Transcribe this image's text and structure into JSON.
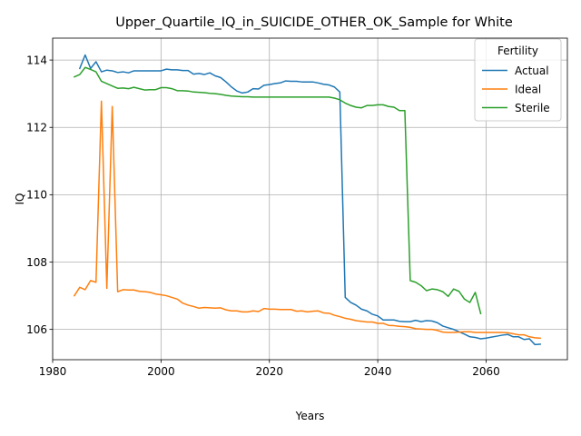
{
  "chart_data": {
    "type": "line",
    "title": "Upper_Quartile_IQ_in_SUICIDE_OTHER_OK_Sample for White",
    "xlabel": "Years",
    "ylabel": "IQ",
    "xlim": [
      1980,
      2075
    ],
    "ylim": [
      105.1,
      114.65
    ],
    "xticks": [
      1980,
      2000,
      2020,
      2040,
      2060
    ],
    "yticks": [
      106,
      108,
      110,
      112,
      114
    ],
    "grid": true,
    "legend": {
      "title": "Fertility",
      "placement": "top-right"
    },
    "series": [
      {
        "name": "Actual",
        "color": "#1f77b4",
        "points": [
          [
            1985,
            113.75
          ],
          [
            1986,
            114.15
          ],
          [
            1987,
            113.75
          ],
          [
            1988,
            113.95
          ],
          [
            1989,
            113.65
          ],
          [
            1990,
            113.7
          ],
          [
            1991,
            113.68
          ],
          [
            1992,
            113.63
          ],
          [
            1993,
            113.65
          ],
          [
            1994,
            113.62
          ],
          [
            1995,
            113.68
          ],
          [
            1996,
            113.68
          ],
          [
            1997,
            113.68
          ],
          [
            1998,
            113.68
          ],
          [
            1999,
            113.68
          ],
          [
            2000,
            113.68
          ],
          [
            2001,
            113.73
          ],
          [
            2002,
            113.71
          ],
          [
            2003,
            113.71
          ],
          [
            2004,
            113.69
          ],
          [
            2005,
            113.69
          ],
          [
            2006,
            113.58
          ],
          [
            2007,
            113.6
          ],
          [
            2008,
            113.57
          ],
          [
            2009,
            113.62
          ],
          [
            2010,
            113.53
          ],
          [
            2011,
            113.48
          ],
          [
            2012,
            113.35
          ],
          [
            2013,
            113.2
          ],
          [
            2014,
            113.08
          ],
          [
            2015,
            113.02
          ],
          [
            2016,
            113.05
          ],
          [
            2017,
            113.15
          ],
          [
            2018,
            113.14
          ],
          [
            2019,
            113.25
          ],
          [
            2020,
            113.27
          ],
          [
            2021,
            113.3
          ],
          [
            2022,
            113.32
          ],
          [
            2023,
            113.38
          ],
          [
            2024,
            113.37
          ],
          [
            2025,
            113.37
          ],
          [
            2026,
            113.35
          ],
          [
            2027,
            113.35
          ],
          [
            2028,
            113.35
          ],
          [
            2029,
            113.32
          ],
          [
            2030,
            113.28
          ],
          [
            2031,
            113.26
          ],
          [
            2032,
            113.2
          ],
          [
            2033,
            113.05
          ],
          [
            2034,
            106.95
          ],
          [
            2035,
            106.8
          ],
          [
            2036,
            106.72
          ],
          [
            2037,
            106.6
          ],
          [
            2038,
            106.55
          ],
          [
            2039,
            106.45
          ],
          [
            2040,
            106.4
          ],
          [
            2041,
            106.28
          ],
          [
            2042,
            106.28
          ],
          [
            2043,
            106.28
          ],
          [
            2044,
            106.24
          ],
          [
            2045,
            106.23
          ],
          [
            2046,
            106.23
          ],
          [
            2047,
            106.27
          ],
          [
            2048,
            106.23
          ],
          [
            2049,
            106.26
          ],
          [
            2050,
            106.25
          ],
          [
            2051,
            106.2
          ],
          [
            2052,
            106.1
          ],
          [
            2053,
            106.05
          ],
          [
            2054,
            106.0
          ],
          [
            2055,
            105.93
          ],
          [
            2056,
            105.86
          ],
          [
            2057,
            105.78
          ],
          [
            2058,
            105.76
          ],
          [
            2059,
            105.72
          ],
          [
            2060,
            105.74
          ],
          [
            2061,
            105.77
          ],
          [
            2062,
            105.8
          ],
          [
            2063,
            105.83
          ],
          [
            2064,
            105.85
          ],
          [
            2065,
            105.78
          ],
          [
            2066,
            105.78
          ],
          [
            2067,
            105.7
          ],
          [
            2068,
            105.72
          ],
          [
            2069,
            105.55
          ],
          [
            2070,
            105.56
          ]
        ]
      },
      {
        "name": "Ideal",
        "color": "#ff7f0e",
        "points": [
          [
            1984,
            107.0
          ],
          [
            1985,
            107.25
          ],
          [
            1986,
            107.18
          ],
          [
            1987,
            107.45
          ],
          [
            1988,
            107.4
          ],
          [
            1989,
            112.78
          ],
          [
            1990,
            107.22
          ],
          [
            1991,
            112.62
          ],
          [
            1992,
            107.12
          ],
          [
            1993,
            107.18
          ],
          [
            1994,
            107.17
          ],
          [
            1995,
            107.17
          ],
          [
            1996,
            107.13
          ],
          [
            1997,
            107.12
          ],
          [
            1998,
            107.1
          ],
          [
            1999,
            107.05
          ],
          [
            2000,
            107.03
          ],
          [
            2001,
            107.0
          ],
          [
            2002,
            106.95
          ],
          [
            2003,
            106.9
          ],
          [
            2004,
            106.78
          ],
          [
            2005,
            106.72
          ],
          [
            2006,
            106.68
          ],
          [
            2007,
            106.63
          ],
          [
            2008,
            106.65
          ],
          [
            2009,
            106.64
          ],
          [
            2010,
            106.63
          ],
          [
            2011,
            106.64
          ],
          [
            2012,
            106.58
          ],
          [
            2013,
            106.55
          ],
          [
            2014,
            106.55
          ],
          [
            2015,
            106.52
          ],
          [
            2016,
            106.52
          ],
          [
            2017,
            106.55
          ],
          [
            2018,
            106.53
          ],
          [
            2019,
            106.62
          ],
          [
            2020,
            106.6
          ],
          [
            2021,
            106.6
          ],
          [
            2022,
            106.59
          ],
          [
            2023,
            106.59
          ],
          [
            2024,
            106.59
          ],
          [
            2025,
            106.54
          ],
          [
            2026,
            106.55
          ],
          [
            2027,
            106.52
          ],
          [
            2028,
            106.54
          ],
          [
            2029,
            106.55
          ],
          [
            2030,
            106.49
          ],
          [
            2031,
            106.48
          ],
          [
            2032,
            106.42
          ],
          [
            2033,
            106.38
          ],
          [
            2034,
            106.33
          ],
          [
            2035,
            106.3
          ],
          [
            2036,
            106.26
          ],
          [
            2037,
            106.24
          ],
          [
            2038,
            106.22
          ],
          [
            2039,
            106.22
          ],
          [
            2040,
            106.18
          ],
          [
            2041,
            106.18
          ],
          [
            2042,
            106.12
          ],
          [
            2043,
            106.11
          ],
          [
            2044,
            106.09
          ],
          [
            2045,
            106.08
          ],
          [
            2046,
            106.06
          ],
          [
            2047,
            106.02
          ],
          [
            2048,
            106.01
          ],
          [
            2049,
            106.0
          ],
          [
            2050,
            106.0
          ],
          [
            2051,
            105.97
          ],
          [
            2052,
            105.92
          ],
          [
            2053,
            105.91
          ],
          [
            2054,
            105.91
          ],
          [
            2055,
            105.92
          ],
          [
            2056,
            105.93
          ],
          [
            2057,
            105.93
          ],
          [
            2058,
            105.91
          ],
          [
            2059,
            105.91
          ],
          [
            2060,
            105.91
          ],
          [
            2061,
            105.91
          ],
          [
            2062,
            105.91
          ],
          [
            2063,
            105.91
          ],
          [
            2064,
            105.9
          ],
          [
            2065,
            105.87
          ],
          [
            2066,
            105.84
          ],
          [
            2067,
            105.84
          ],
          [
            2068,
            105.78
          ],
          [
            2069,
            105.75
          ],
          [
            2070,
            105.74
          ]
        ]
      },
      {
        "name": "Sterile",
        "color": "#2ca02c",
        "points": [
          [
            1984,
            113.5
          ],
          [
            1985,
            113.57
          ],
          [
            1986,
            113.78
          ],
          [
            1987,
            113.72
          ],
          [
            1988,
            113.65
          ],
          [
            1989,
            113.37
          ],
          [
            1990,
            113.3
          ],
          [
            1991,
            113.23
          ],
          [
            1992,
            113.16
          ],
          [
            1993,
            113.17
          ],
          [
            1994,
            113.15
          ],
          [
            1995,
            113.19
          ],
          [
            1996,
            113.15
          ],
          [
            1997,
            113.11
          ],
          [
            1998,
            113.12
          ],
          [
            1999,
            113.12
          ],
          [
            2000,
            113.18
          ],
          [
            2001,
            113.18
          ],
          [
            2002,
            113.15
          ],
          [
            2003,
            113.09
          ],
          [
            2004,
            113.09
          ],
          [
            2005,
            113.08
          ],
          [
            2006,
            113.05
          ],
          [
            2007,
            113.04
          ],
          [
            2008,
            113.03
          ],
          [
            2009,
            113.01
          ],
          [
            2010,
            113.0
          ],
          [
            2011,
            112.98
          ],
          [
            2012,
            112.95
          ],
          [
            2013,
            112.93
          ],
          [
            2014,
            112.92
          ],
          [
            2015,
            112.91
          ],
          [
            2016,
            112.91
          ],
          [
            2017,
            112.9
          ],
          [
            2018,
            112.9
          ],
          [
            2019,
            112.9
          ],
          [
            2020,
            112.9
          ],
          [
            2021,
            112.9
          ],
          [
            2022,
            112.9
          ],
          [
            2023,
            112.9
          ],
          [
            2024,
            112.9
          ],
          [
            2025,
            112.9
          ],
          [
            2026,
            112.9
          ],
          [
            2027,
            112.9
          ],
          [
            2028,
            112.9
          ],
          [
            2029,
            112.9
          ],
          [
            2030,
            112.9
          ],
          [
            2031,
            112.9
          ],
          [
            2032,
            112.87
          ],
          [
            2033,
            112.82
          ],
          [
            2034,
            112.72
          ],
          [
            2035,
            112.65
          ],
          [
            2036,
            112.6
          ],
          [
            2037,
            112.58
          ],
          [
            2038,
            112.65
          ],
          [
            2039,
            112.65
          ],
          [
            2040,
            112.67
          ],
          [
            2041,
            112.67
          ],
          [
            2042,
            112.62
          ],
          [
            2043,
            112.6
          ],
          [
            2044,
            112.5
          ],
          [
            2045,
            112.5
          ],
          [
            2046,
            107.45
          ],
          [
            2047,
            107.4
          ],
          [
            2048,
            107.3
          ],
          [
            2049,
            107.15
          ],
          [
            2050,
            107.2
          ],
          [
            2051,
            107.18
          ],
          [
            2052,
            107.12
          ],
          [
            2053,
            106.98
          ],
          [
            2054,
            107.2
          ],
          [
            2055,
            107.13
          ],
          [
            2056,
            106.9
          ],
          [
            2057,
            106.8
          ],
          [
            2058,
            107.1
          ],
          [
            2059,
            106.47
          ]
        ]
      }
    ]
  }
}
